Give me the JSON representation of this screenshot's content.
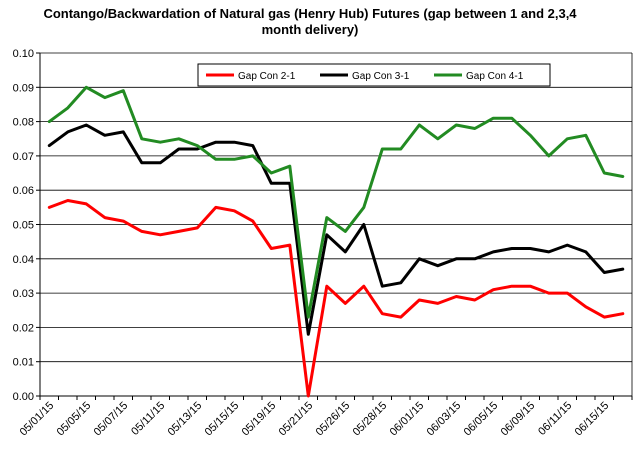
{
  "chart_data": {
    "type": "line",
    "title": "Contango/Backwardation of Natural gas (Henry Hub) Futures (gap between 1 and 2,3,4 month delivery)",
    "ylim": [
      0,
      0.1
    ],
    "y_ticks": [
      "0.00",
      "0.01",
      "0.02",
      "0.03",
      "0.04",
      "0.05",
      "0.06",
      "0.07",
      "0.08",
      "0.09",
      "0.10"
    ],
    "x_tick_labels": [
      "05/01/15",
      "05/05/15",
      "05/07/15",
      "05/11/15",
      "05/13/15",
      "05/15/15",
      "05/19/15",
      "05/21/15",
      "05/26/15",
      "05/28/15",
      "06/01/15",
      "06/03/15",
      "06/05/15",
      "06/09/15",
      "06/11/15",
      "06/15/15"
    ],
    "grid": true,
    "legend_position": "top-right",
    "categories": [
      "05/01/15",
      "05/04/15",
      "05/05/15",
      "05/06/15",
      "05/07/15",
      "05/08/15",
      "05/11/15",
      "05/12/15",
      "05/13/15",
      "05/14/15",
      "05/15/15",
      "05/18/15",
      "05/19/15",
      "05/20/15",
      "05/21/15",
      "05/22/15",
      "05/26/15",
      "05/27/15",
      "05/28/15",
      "05/29/15",
      "06/01/15",
      "06/02/15",
      "06/03/15",
      "06/04/15",
      "06/05/15",
      "06/08/15",
      "06/09/15",
      "06/10/15",
      "06/11/15",
      "06/12/15",
      "06/15/15",
      "06/16/15"
    ],
    "series": [
      {
        "name": "Gap Con 2-1",
        "color": "#ff0000",
        "values": [
          0.055,
          0.057,
          0.056,
          0.052,
          0.051,
          0.048,
          0.047,
          0.048,
          0.049,
          0.055,
          0.054,
          0.051,
          0.043,
          0.044,
          0.0,
          0.032,
          0.027,
          0.032,
          0.024,
          0.023,
          0.028,
          0.027,
          0.029,
          0.028,
          0.031,
          0.032,
          0.032,
          0.03,
          0.03,
          0.026,
          0.023,
          0.024
        ]
      },
      {
        "name": "Gap Con 3-1",
        "color": "#000000",
        "values": [
          0.073,
          0.077,
          0.079,
          0.076,
          0.077,
          0.068,
          0.068,
          0.072,
          0.072,
          0.074,
          0.074,
          0.073,
          0.062,
          0.062,
          0.018,
          0.047,
          0.042,
          0.05,
          0.032,
          0.033,
          0.04,
          0.038,
          0.04,
          0.04,
          0.042,
          0.043,
          0.043,
          0.042,
          0.044,
          0.042,
          0.036,
          0.037
        ]
      },
      {
        "name": "Gap Con 4-1",
        "color": "#228b22",
        "values": [
          0.08,
          0.084,
          0.09,
          0.087,
          0.089,
          0.075,
          0.074,
          0.075,
          0.073,
          0.069,
          0.069,
          0.07,
          0.065,
          0.067,
          0.023,
          0.052,
          0.048,
          0.055,
          0.072,
          0.072,
          0.079,
          0.075,
          0.079,
          0.078,
          0.081,
          0.081,
          0.076,
          0.07,
          0.075,
          0.076,
          0.065,
          0.064
        ]
      }
    ]
  }
}
